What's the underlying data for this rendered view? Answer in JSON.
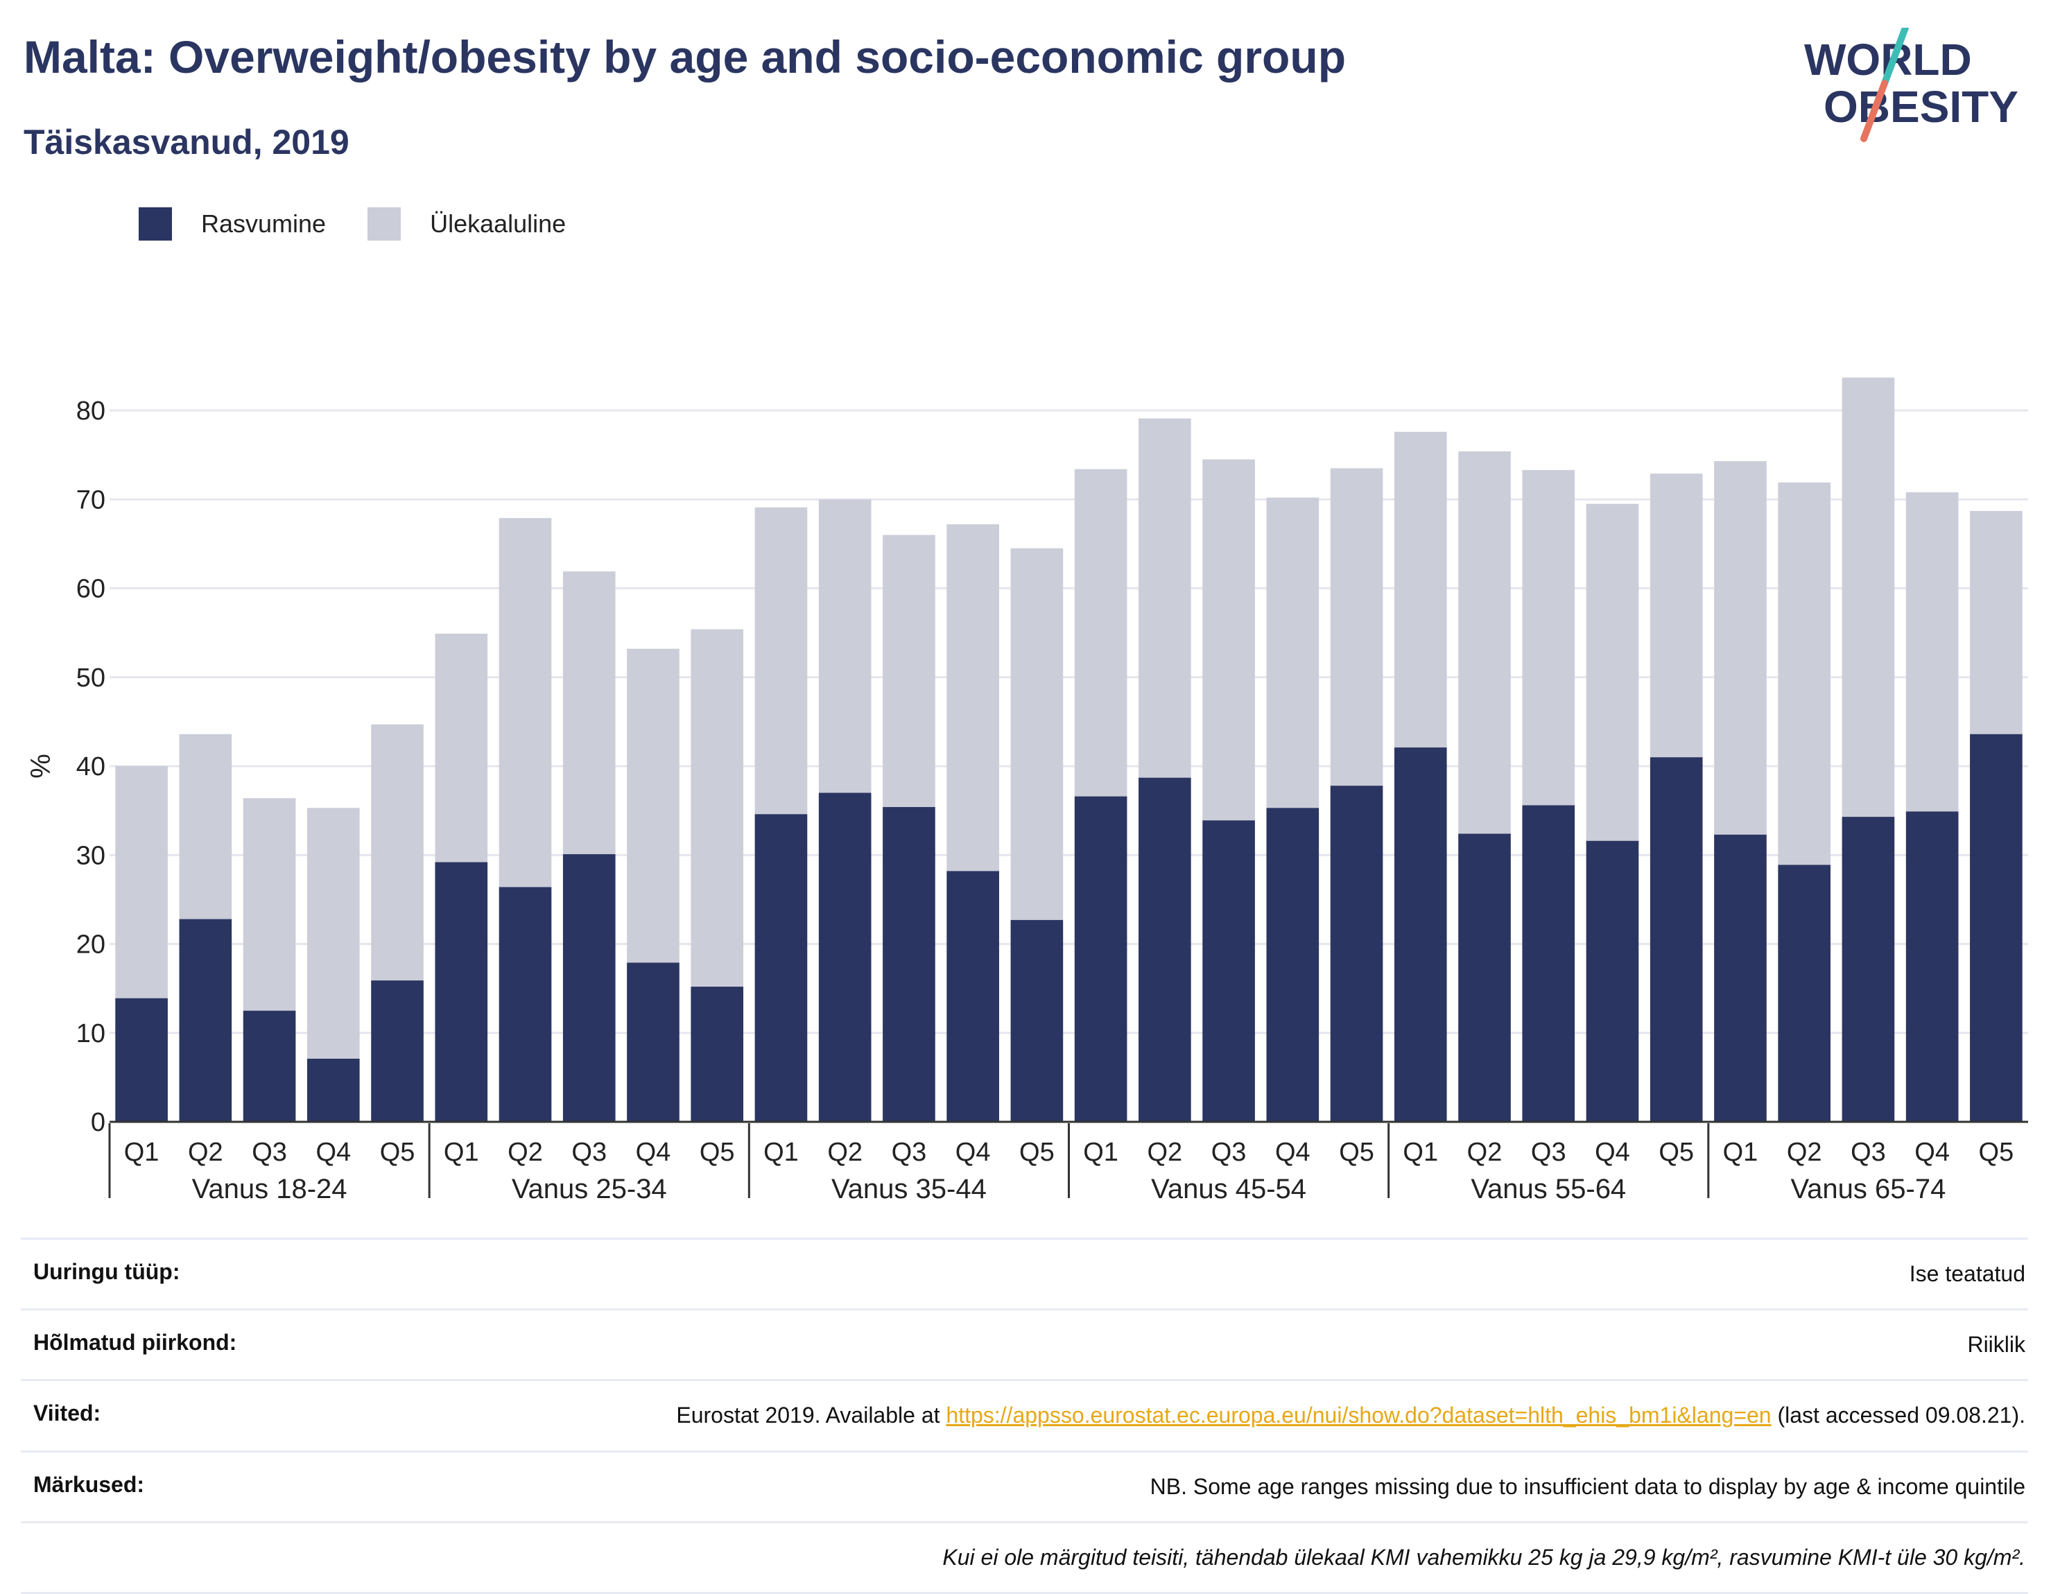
{
  "header": {
    "title": "Malta: Overweight/obesity by age and socio-economic group",
    "subtitle": "Täiskasvanud, 2019",
    "logo_line1": "WORLD",
    "logo_line2": "OBESITY"
  },
  "legend": {
    "obesity_label": "Rasvumine",
    "overweight_label": "Ülekaaluline"
  },
  "colors": {
    "obesity": "#2b3561",
    "overweight": "#cbcdd9",
    "grid": "#e6e6ee",
    "logo_teal": "#3dbdb5",
    "logo_coral": "#e8745f"
  },
  "chart_data": {
    "type": "bar",
    "stacked": true,
    "ylabel": "%",
    "ylim": [
      0,
      85
    ],
    "yticks": [
      0,
      10,
      20,
      30,
      40,
      50,
      60,
      70,
      80
    ],
    "grid": true,
    "legend_position": "top-left",
    "groups": [
      {
        "label": "Vanus 18-24",
        "categories": [
          "Q1",
          "Q2",
          "Q3",
          "Q4",
          "Q5"
        ],
        "obesity": [
          13.9,
          22.8,
          12.5,
          7.1,
          15.9
        ],
        "total": [
          40.0,
          43.6,
          36.4,
          35.3,
          44.7
        ]
      },
      {
        "label": "Vanus 25-34",
        "categories": [
          "Q1",
          "Q2",
          "Q3",
          "Q4",
          "Q5"
        ],
        "obesity": [
          29.2,
          26.4,
          30.1,
          17.9,
          15.2
        ],
        "total": [
          54.9,
          67.9,
          61.9,
          53.2,
          55.4
        ]
      },
      {
        "label": "Vanus 35-44",
        "categories": [
          "Q1",
          "Q2",
          "Q3",
          "Q4",
          "Q5"
        ],
        "obesity": [
          34.6,
          37.0,
          35.4,
          28.2,
          22.7
        ],
        "total": [
          69.1,
          70.0,
          66.0,
          67.2,
          64.5
        ]
      },
      {
        "label": "Vanus 45-54",
        "categories": [
          "Q1",
          "Q2",
          "Q3",
          "Q4",
          "Q5"
        ],
        "obesity": [
          36.6,
          38.7,
          33.9,
          35.3,
          37.8
        ],
        "total": [
          73.4,
          79.1,
          74.5,
          70.2,
          73.5
        ]
      },
      {
        "label": "Vanus 55-64",
        "categories": [
          "Q1",
          "Q2",
          "Q3",
          "Q4",
          "Q5"
        ],
        "obesity": [
          42.1,
          32.4,
          35.6,
          31.6,
          41.0
        ],
        "total": [
          77.6,
          75.4,
          73.3,
          69.5,
          72.9
        ]
      },
      {
        "label": "Vanus 65-74",
        "categories": [
          "Q1",
          "Q2",
          "Q3",
          "Q4",
          "Q5"
        ],
        "obesity": [
          32.3,
          28.9,
          34.3,
          34.9,
          43.6
        ],
        "total": [
          74.3,
          71.9,
          83.7,
          70.8,
          68.7
        ]
      }
    ]
  },
  "info_table": {
    "survey_type_label": "Uuringu tüüp:",
    "survey_type_value": "Ise teatatud",
    "region_label": "Hõlmatud piirkond:",
    "region_value": "Riiklik",
    "references_label": "Viited:",
    "references_prefix": "Eurostat 2019. Available at ",
    "references_link": "https://appsso.eurostat.ec.europa.eu/nui/show.do?dataset=hlth_ehis_bm1i&lang=en",
    "references_suffix": " (last accessed 09.08.21).",
    "notes_label": "Märkused:",
    "notes_value": "NB. Some age ranges missing due to insufficient data to display by age & income quintile",
    "definition_note": "Kui ei ole märgitud teisiti, tähendab ülekaal KMI vahemikku 25 kg ja 29,9 kg/m², rasvumine KMI-t üle 30 kg/m²."
  }
}
